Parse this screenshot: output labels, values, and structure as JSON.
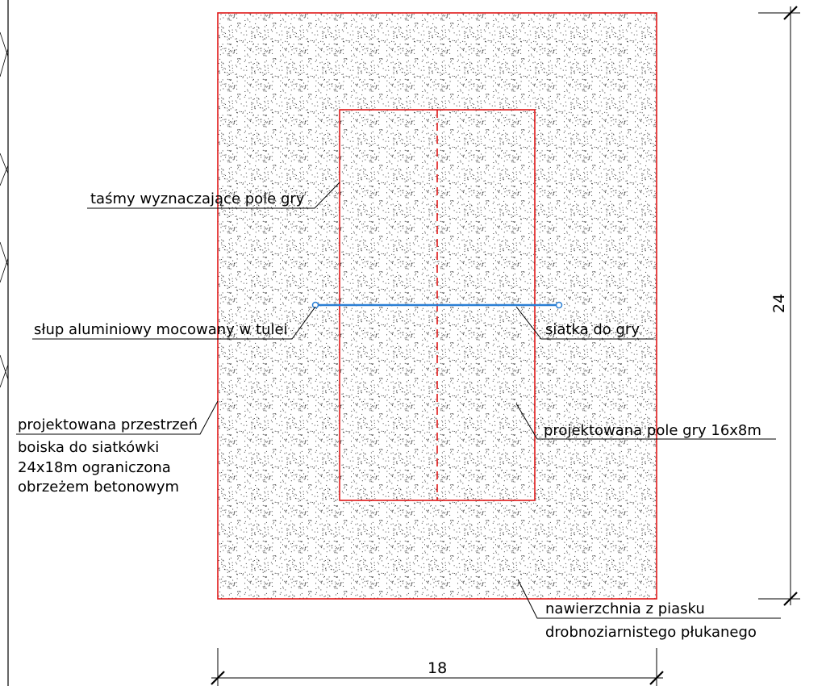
{
  "colors": {
    "boundary": "#e01818",
    "net": "#2a7fd4",
    "ink": "#000000",
    "sand_dot": "#3a3a3a"
  },
  "labels": {
    "tape": "taśmy wyznaczające pole gry",
    "post": "słup aluminiowy mocowany w tulei",
    "net": "siatka do gry",
    "space_line1": "projektowana przestrzeń",
    "space_line2": "boiska do siatkówki",
    "space_line3": "24x18m ograniczona",
    "space_line4": "obrzeżem betonowym",
    "court": "projektowana pole gry 16x8m",
    "surface_line1": "nawierzchnia z piasku",
    "surface_line2": "drobnoziarnistego płukanego"
  },
  "dimensions": {
    "width": "18",
    "length": "24"
  }
}
